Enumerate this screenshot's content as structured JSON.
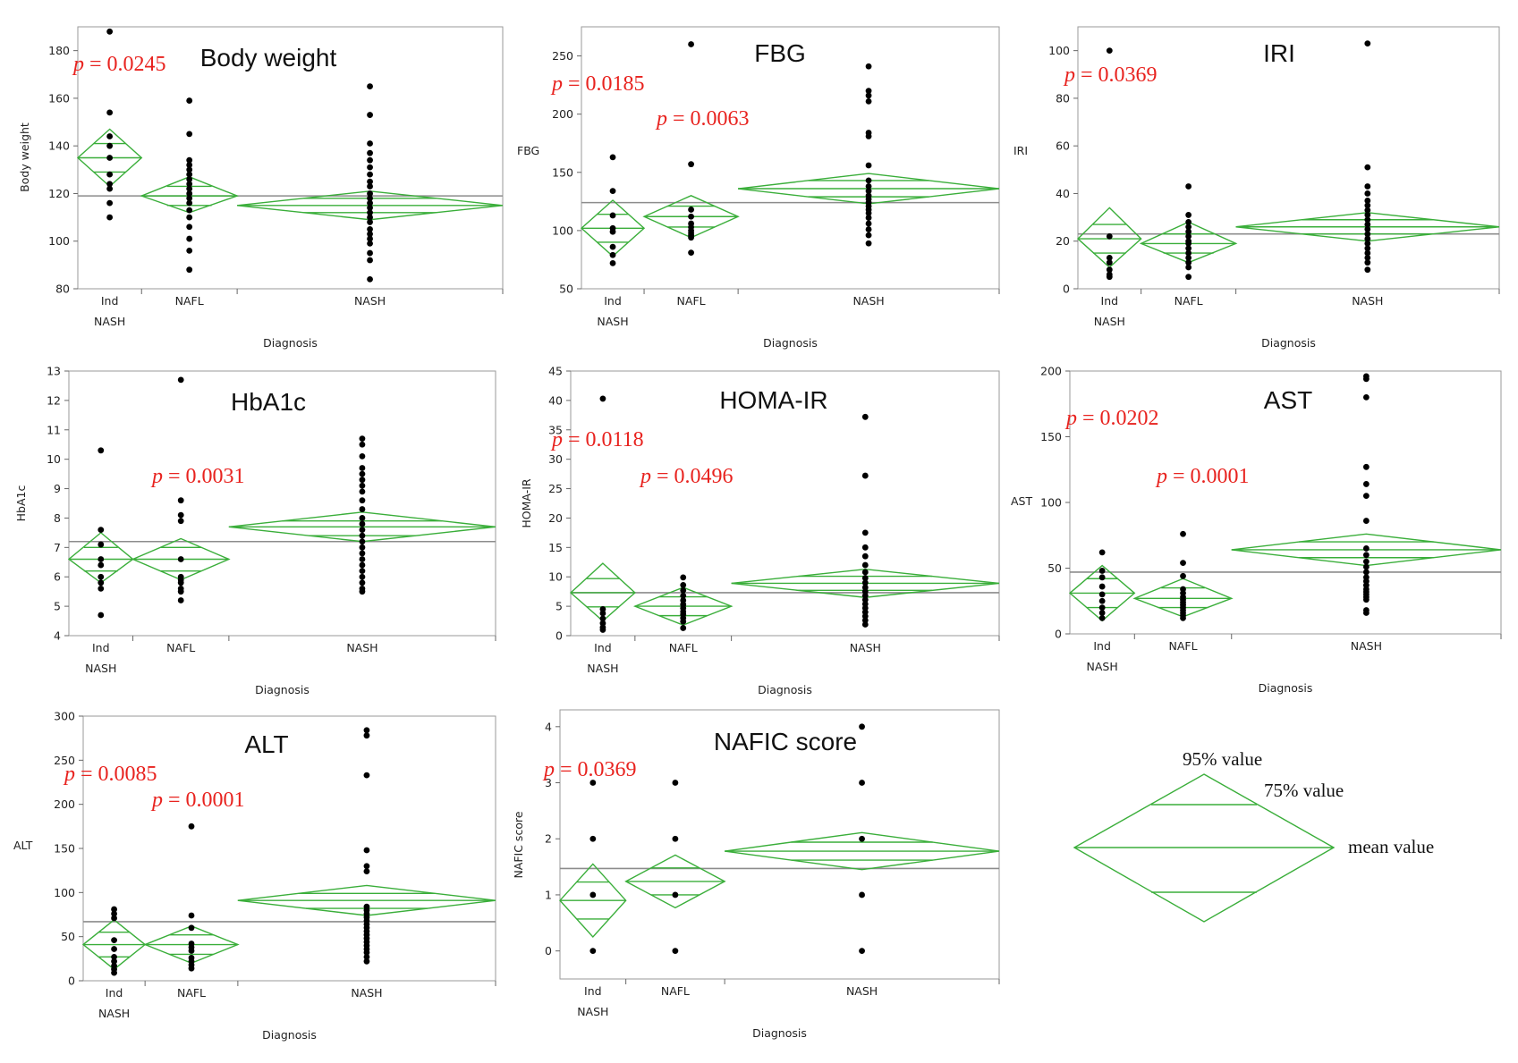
{
  "chart_data": [
    {
      "type": "scatter",
      "subtype": "jmp-means-diamonds",
      "title": "Body weight",
      "xlabel": "Diagnosis",
      "ylabel": "Body weight",
      "categories": [
        "Ind NASH",
        "NAFL",
        "NASH"
      ],
      "ylim": [
        80,
        190
      ],
      "yticks": [
        80,
        100,
        120,
        140,
        160,
        180
      ],
      "grand_mean": 119,
      "groups": [
        {
          "category": "Ind NASH",
          "mean": 135,
          "ci95": [
            123,
            147
          ],
          "ci75": [
            129,
            141
          ],
          "points": [
            188,
            154,
            144,
            140,
            135,
            128,
            124,
            122,
            116,
            110
          ]
        },
        {
          "category": "NAFL",
          "mean": 119,
          "ci95": [
            112,
            127
          ],
          "ci75": [
            115,
            123
          ],
          "points": [
            159,
            145,
            134,
            132,
            130,
            128,
            126,
            124,
            122,
            120,
            118,
            116,
            113,
            110,
            106,
            101,
            96,
            88
          ]
        },
        {
          "category": "NASH",
          "mean": 115,
          "ci95": [
            109,
            121
          ],
          "ci75": [
            112,
            118
          ],
          "points": [
            165,
            153,
            141,
            137,
            134,
            131,
            128,
            125,
            123,
            120,
            118,
            116,
            114,
            112,
            110,
            108,
            105,
            103,
            101,
            99,
            95,
            92,
            84
          ]
        }
      ],
      "annotations": [
        {
          "text": "p = 0.0245"
        }
      ]
    },
    {
      "type": "scatter",
      "subtype": "jmp-means-diamonds",
      "title": "FBG",
      "xlabel": "Diagnosis",
      "ylabel": "FBG",
      "categories": [
        "Ind NASH",
        "NAFL",
        "NASH"
      ],
      "ylim": [
        50,
        275
      ],
      "yticks": [
        50,
        100,
        150,
        200,
        250
      ],
      "grand_mean": 124,
      "groups": [
        {
          "category": "Ind NASH",
          "mean": 102,
          "ci95": [
            78,
            126
          ],
          "ci75": [
            90,
            114
          ],
          "points": [
            163,
            134,
            113,
            102,
            99,
            86,
            79,
            72
          ]
        },
        {
          "category": "NAFL",
          "mean": 112,
          "ci95": [
            94,
            130
          ],
          "ci75": [
            103,
            121
          ],
          "points": [
            260,
            157,
            118,
            112,
            106,
            103,
            100,
            98,
            96,
            94,
            81
          ]
        },
        {
          "category": "NASH",
          "mean": 136,
          "ci95": [
            123,
            149
          ],
          "ci75": [
            129,
            143
          ],
          "points": [
            241,
            220,
            216,
            211,
            184,
            181,
            156,
            143,
            138,
            134,
            130,
            127,
            124,
            121,
            118,
            115,
            111,
            106,
            101,
            96,
            89
          ]
        }
      ],
      "annotations": [
        {
          "text": "p = 0.0185"
        },
        {
          "text": "p = 0.0063"
        }
      ]
    },
    {
      "type": "scatter",
      "subtype": "jmp-means-diamonds",
      "title": "IRI",
      "xlabel": "Diagnosis",
      "ylabel": "IRI",
      "categories": [
        "Ind NASH",
        "NAFL",
        "NASH"
      ],
      "ylim": [
        0,
        110
      ],
      "yticks": [
        0,
        20,
        40,
        60,
        80,
        100
      ],
      "grand_mean": 23,
      "groups": [
        {
          "category": "Ind NASH",
          "mean": 21,
          "ci95": [
            9,
            34
          ],
          "ci75": [
            15,
            27
          ],
          "points": [
            100,
            22,
            13,
            11,
            8,
            6,
            5
          ]
        },
        {
          "category": "NAFL",
          "mean": 19,
          "ci95": [
            11,
            28
          ],
          "ci75": [
            15,
            23
          ],
          "points": [
            43,
            31,
            28,
            26,
            24,
            22,
            20,
            19,
            17,
            15,
            13,
            11,
            9,
            5
          ]
        },
        {
          "category": "NASH",
          "mean": 26,
          "ci95": [
            20,
            32
          ],
          "ci75": [
            23,
            29
          ],
          "points": [
            103,
            51,
            43,
            40,
            37,
            35,
            33,
            31,
            29,
            27,
            25,
            23,
            21,
            19,
            17,
            15,
            13,
            11,
            8
          ]
        }
      ],
      "annotations": [
        {
          "text": "p = 0.0369"
        }
      ]
    },
    {
      "type": "scatter",
      "subtype": "jmp-means-diamonds",
      "title": "HbA1c",
      "xlabel": "Diagnosis",
      "ylabel": "HbA1c",
      "categories": [
        "Ind NASH",
        "NAFL",
        "NASH"
      ],
      "ylim": [
        4,
        13
      ],
      "yticks": [
        4,
        5,
        6,
        7,
        8,
        9,
        10,
        11,
        12,
        13
      ],
      "grand_mean": 7.2,
      "groups": [
        {
          "category": "Ind NASH",
          "mean": 6.6,
          "ci95": [
            5.8,
            7.5
          ],
          "ci75": [
            6.2,
            7.0
          ],
          "points": [
            10.3,
            7.6,
            7.1,
            6.6,
            6.4,
            6.0,
            5.8,
            5.6,
            4.7
          ]
        },
        {
          "category": "NAFL",
          "mean": 6.6,
          "ci95": [
            5.9,
            7.3
          ],
          "ci75": [
            6.2,
            7.0
          ],
          "points": [
            12.7,
            8.6,
            8.1,
            7.9,
            6.6,
            6.0,
            5.9,
            5.8,
            5.6,
            5.5,
            5.2
          ]
        },
        {
          "category": "NASH",
          "mean": 7.7,
          "ci95": [
            7.2,
            8.2
          ],
          "ci75": [
            7.4,
            7.9
          ],
          "points": [
            10.7,
            10.5,
            10.1,
            9.7,
            9.5,
            9.3,
            9.1,
            8.9,
            8.6,
            8.3,
            8.0,
            7.8,
            7.6,
            7.4,
            7.2,
            7.0,
            6.8,
            6.6,
            6.4,
            6.2,
            6.0,
            5.8,
            5.6,
            5.5
          ]
        }
      ],
      "annotations": [
        {
          "text": "p = 0.0031"
        }
      ]
    },
    {
      "type": "scatter",
      "subtype": "jmp-means-diamonds",
      "title": "HOMA-IR",
      "xlabel": "Diagnosis",
      "ylabel": "HOMA-IR",
      "categories": [
        "Ind NASH",
        "NAFL",
        "NASH"
      ],
      "ylim": [
        0,
        45
      ],
      "yticks": [
        0,
        5,
        10,
        15,
        20,
        25,
        30,
        35,
        40,
        45
      ],
      "grand_mean": 7.3,
      "groups": [
        {
          "category": "Ind NASH",
          "mean": 7.3,
          "ci95": [
            2.5,
            12.3
          ],
          "ci75": [
            4.9,
            9.7
          ],
          "points": [
            40.3,
            4.5,
            3.8,
            2.9,
            2.1,
            1.4,
            1.0
          ]
        },
        {
          "category": "NAFL",
          "mean": 5.0,
          "ci95": [
            1.8,
            8.2
          ],
          "ci75": [
            3.4,
            6.6
          ],
          "points": [
            9.9,
            8.6,
            7.7,
            6.8,
            6.0,
            5.3,
            4.7,
            4.1,
            3.6,
            3.0,
            2.4,
            1.3
          ]
        },
        {
          "category": "NASH",
          "mean": 8.9,
          "ci95": [
            6.5,
            11.3
          ],
          "ci75": [
            7.7,
            10.1
          ],
          "points": [
            37.2,
            27.2,
            17.5,
            15.0,
            13.5,
            12.0,
            10.8,
            9.8,
            9.0,
            8.2,
            7.5,
            6.8,
            6.1,
            5.4,
            4.7,
            4.0,
            3.3,
            2.6,
            1.9
          ]
        }
      ],
      "annotations": [
        {
          "text": "p = 0.0118"
        },
        {
          "text": "p = 0.0496"
        }
      ]
    },
    {
      "type": "scatter",
      "subtype": "jmp-means-diamonds",
      "title": "AST",
      "xlabel": "Diagnosis",
      "ylabel": "AST",
      "categories": [
        "Ind NASH",
        "NAFL",
        "NASH"
      ],
      "ylim": [
        0,
        200
      ],
      "yticks": [
        0,
        50,
        100,
        150,
        200
      ],
      "grand_mean": 47,
      "groups": [
        {
          "category": "Ind NASH",
          "mean": 31,
          "ci95": [
            10,
            52
          ],
          "ci75": [
            20,
            42
          ],
          "points": [
            62,
            48,
            43,
            36,
            30,
            25,
            20,
            16,
            12
          ]
        },
        {
          "category": "NAFL",
          "mean": 27,
          "ci95": [
            13,
            42
          ],
          "ci75": [
            20,
            35
          ],
          "points": [
            76,
            54,
            44,
            34,
            31,
            28,
            26,
            24,
            22,
            20,
            18,
            16,
            14,
            12
          ]
        },
        {
          "category": "NASH",
          "mean": 64,
          "ci95": [
            52,
            76
          ],
          "ci75": [
            58,
            70
          ],
          "points": [
            196,
            194,
            180,
            127,
            114,
            105,
            86,
            65,
            60,
            55,
            51,
            47,
            43,
            40,
            37,
            34,
            32,
            30,
            28,
            26,
            18,
            16
          ]
        }
      ],
      "annotations": [
        {
          "text": "p = 0.0202"
        },
        {
          "text": "p = 0.0001"
        }
      ]
    },
    {
      "type": "scatter",
      "subtype": "jmp-means-diamonds",
      "title": "ALT",
      "xlabel": "Diagnosis",
      "ylabel": "ALT",
      "categories": [
        "Ind NASH",
        "NAFL",
        "NASH"
      ],
      "ylim": [
        0,
        300
      ],
      "yticks": [
        0,
        50,
        100,
        150,
        200,
        250,
        300
      ],
      "grand_mean": 67,
      "groups": [
        {
          "category": "Ind NASH",
          "mean": 41,
          "ci95": [
            13,
            69
          ],
          "ci75": [
            27,
            55
          ],
          "points": [
            81,
            76,
            71,
            46,
            36,
            27,
            22,
            17,
            13,
            9
          ]
        },
        {
          "category": "NAFL",
          "mean": 41,
          "ci95": [
            20,
            62
          ],
          "ci75": [
            30,
            52
          ],
          "points": [
            175,
            74,
            60,
            42,
            38,
            34,
            26,
            22,
            18,
            14
          ]
        },
        {
          "category": "NASH",
          "mean": 91,
          "ci95": [
            74,
            108
          ],
          "ci75": [
            82,
            99
          ],
          "points": [
            284,
            278,
            233,
            148,
            130,
            124,
            84,
            80,
            76,
            72,
            68,
            64,
            60,
            56,
            52,
            48,
            44,
            40,
            36,
            32,
            27,
            22
          ]
        }
      ],
      "annotations": [
        {
          "text": "p = 0.0085"
        },
        {
          "text": "p = 0.0001"
        }
      ]
    },
    {
      "type": "scatter",
      "subtype": "jmp-means-diamonds",
      "title": "NAFIC score",
      "xlabel": "Diagnosis",
      "ylabel": "NAFIC score",
      "categories": [
        "Ind NASH",
        "NAFL",
        "NASH"
      ],
      "ylim": [
        -0.5,
        4.3
      ],
      "yticks": [
        0,
        1,
        2,
        3,
        4
      ],
      "grand_mean": 1.47,
      "groups": [
        {
          "category": "Ind NASH",
          "mean": 0.9,
          "ci95": [
            0.25,
            1.55
          ],
          "ci75": [
            0.57,
            1.23
          ],
          "points": [
            3,
            2,
            1,
            0
          ]
        },
        {
          "category": "NAFL",
          "mean": 1.24,
          "ci95": [
            0.77,
            1.71
          ],
          "ci75": [
            1.0,
            1.48
          ],
          "points": [
            3,
            2,
            1,
            0
          ]
        },
        {
          "category": "NASH",
          "mean": 1.78,
          "ci95": [
            1.45,
            2.11
          ],
          "ci75": [
            1.62,
            1.94
          ],
          "points": [
            4,
            3,
            2,
            1,
            0
          ]
        }
      ],
      "annotations": [
        {
          "text": "p = 0.0369"
        }
      ]
    }
  ],
  "legend": {
    "labels": [
      "95% value",
      "75% value",
      "mean value"
    ]
  }
}
